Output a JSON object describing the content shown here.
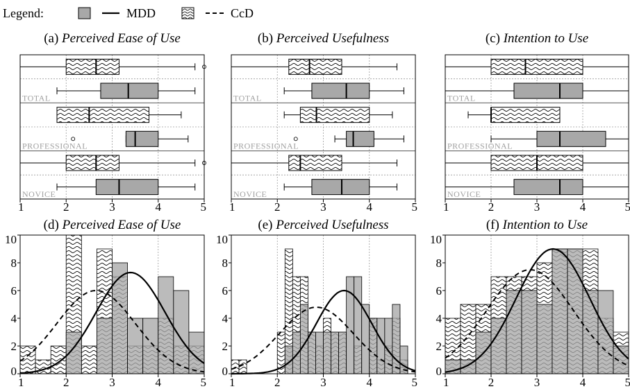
{
  "legend": {
    "label": "Legend:",
    "items": [
      {
        "name": "MDD",
        "style": "gray-box-solid-line",
        "fill": "#a8a8a8"
      },
      {
        "name": "CcD",
        "style": "wavy-box-dashed-line"
      }
    ]
  },
  "chart_data": [
    {
      "type": "box",
      "title_prefix": "(a)",
      "title": "Perceived Ease of Use",
      "xlim": [
        1,
        5
      ],
      "xticks": [
        1,
        2,
        3,
        4,
        5
      ],
      "groups": [
        {
          "label": "TOTAL",
          "CcD": {
            "whislo": 1.0,
            "q1": 2.0,
            "med": 2.65,
            "q3": 3.15,
            "whishi": 4.8,
            "fliers": [
              5.0
            ]
          },
          "MDD": {
            "whislo": 1.8,
            "q1": 2.75,
            "med": 3.35,
            "q3": 4.0,
            "whishi": 4.8,
            "fliers": []
          }
        },
        {
          "label": "PROFESSIONAL",
          "CcD": {
            "whislo": 1.8,
            "q1": 1.8,
            "med": 2.5,
            "q3": 3.8,
            "whishi": 4.5,
            "fliers": []
          },
          "MDD": {
            "whislo": 3.3,
            "q1": 3.3,
            "med": 3.5,
            "q3": 4.0,
            "whishi": 4.65,
            "fliers": [
              2.15
            ]
          }
        },
        {
          "label": "NOVICE",
          "CcD": {
            "whislo": 1.0,
            "q1": 2.0,
            "med": 2.65,
            "q3": 3.15,
            "whishi": 4.8,
            "fliers": [
              5.0
            ]
          },
          "MDD": {
            "whislo": 1.8,
            "q1": 2.65,
            "med": 3.15,
            "q3": 4.0,
            "whishi": 4.8,
            "fliers": []
          }
        }
      ]
    },
    {
      "type": "box",
      "title_prefix": "(b)",
      "title": "Perceived Usefulness",
      "xlim": [
        1,
        5
      ],
      "xticks": [
        1,
        2,
        3,
        4,
        5
      ],
      "groups": [
        {
          "label": "TOTAL",
          "CcD": {
            "whislo": 1.0,
            "q1": 2.25,
            "med": 2.7,
            "q3": 3.4,
            "whishi": 4.6,
            "fliers": []
          },
          "MDD": {
            "whislo": 2.15,
            "q1": 2.75,
            "med": 3.5,
            "q3": 4.0,
            "whishi": 4.75,
            "fliers": []
          }
        },
        {
          "label": "PROFESSIONAL",
          "CcD": {
            "whislo": 2.15,
            "q1": 2.5,
            "med": 2.85,
            "q3": 4.0,
            "whishi": 4.5,
            "fliers": []
          },
          "MDD": {
            "whislo": 3.25,
            "q1": 3.5,
            "med": 3.65,
            "q3": 4.1,
            "whishi": 4.75,
            "fliers": [
              2.4
            ]
          }
        },
        {
          "label": "NOVICE",
          "CcD": {
            "whislo": 1.0,
            "q1": 2.25,
            "med": 2.5,
            "q3": 3.4,
            "whishi": 4.6,
            "fliers": []
          },
          "MDD": {
            "whislo": 2.15,
            "q1": 2.75,
            "med": 3.4,
            "q3": 4.0,
            "whishi": 4.6,
            "fliers": []
          }
        }
      ]
    },
    {
      "type": "box",
      "title_prefix": "(c)",
      "title": "Intention to Use",
      "xlim": [
        1,
        5
      ],
      "xticks": [
        1,
        2,
        3,
        4,
        5
      ],
      "groups": [
        {
          "label": "TOTAL",
          "CcD": {
            "whislo": 1.0,
            "q1": 2.0,
            "med": 2.75,
            "q3": 4.0,
            "whishi": 5.0,
            "fliers": []
          },
          "MDD": {
            "whislo": 1.0,
            "q1": 2.5,
            "med": 3.5,
            "q3": 4.0,
            "whishi": 5.0,
            "fliers": []
          }
        },
        {
          "label": "PROFESSIONAL",
          "CcD": {
            "whislo": 1.5,
            "q1": 2.0,
            "med": 2.0,
            "q3": 3.5,
            "whishi": 3.5,
            "fliers": []
          },
          "MDD": {
            "whislo": 2.0,
            "q1": 3.0,
            "med": 3.5,
            "q3": 4.5,
            "whishi": 5.0,
            "fliers": []
          }
        },
        {
          "label": "NOVICE",
          "CcD": {
            "whislo": 1.0,
            "q1": 2.0,
            "med": 3.0,
            "q3": 4.0,
            "whishi": 5.0,
            "fliers": []
          },
          "MDD": {
            "whislo": 1.0,
            "q1": 2.5,
            "med": 3.5,
            "q3": 4.0,
            "whishi": 5.0,
            "fliers": []
          }
        }
      ]
    },
    {
      "type": "histogram",
      "title_prefix": "(d)",
      "title": "Perceived Ease of Use",
      "xlim": [
        1,
        5
      ],
      "ylim": [
        0,
        10
      ],
      "xticks": [
        1,
        2,
        3,
        4,
        5
      ],
      "yticks": [
        0,
        2,
        4,
        6,
        8,
        10
      ],
      "bin_width": 0.333,
      "bin_starts": [
        1.0,
        1.333,
        1.667,
        2.0,
        2.333,
        2.667,
        3.0,
        3.333,
        3.667,
        4.0,
        4.333,
        4.667
      ],
      "series": [
        {
          "name": "CcD",
          "values": [
            2,
            1,
            2,
            10,
            2,
            9,
            7,
            2,
            2,
            4,
            2,
            2
          ],
          "fit": {
            "mean": 2.65,
            "sd": 0.85,
            "peak": 6.0
          }
        },
        {
          "name": "MDD",
          "values": [
            0,
            0,
            0,
            3,
            0,
            4,
            8,
            4,
            4,
            7,
            6,
            3
          ],
          "fit": {
            "mean": 3.4,
            "sd": 0.75,
            "peak": 7.3
          }
        }
      ]
    },
    {
      "type": "histogram",
      "title_prefix": "(e)",
      "title": "Perceived Usefulness",
      "xlim": [
        1,
        5
      ],
      "ylim": [
        0,
        10
      ],
      "xticks": [
        1,
        2,
        3,
        4,
        5
      ],
      "yticks": [
        0,
        2,
        4,
        6,
        8,
        10
      ],
      "bin_width": 0.167,
      "bin_starts": [
        1.0,
        1.167,
        1.333,
        1.5,
        1.667,
        1.833,
        2.0,
        2.167,
        2.333,
        2.5,
        2.667,
        2.833,
        3.0,
        3.167,
        3.333,
        3.5,
        3.667,
        3.833,
        4.0,
        4.167,
        4.333,
        4.5,
        4.667,
        4.833
      ],
      "series": [
        {
          "name": "CcD",
          "values": [
            1,
            1,
            0,
            0,
            0,
            0,
            3,
            9,
            7,
            7,
            3,
            2,
            4,
            3,
            3,
            0,
            2,
            0,
            4,
            1,
            2,
            4,
            1,
            0
          ],
          "fit": {
            "mean": 2.85,
            "sd": 0.8,
            "peak": 4.8
          }
        },
        {
          "name": "MDD",
          "values": [
            0,
            0,
            0,
            0,
            0,
            0,
            0,
            2,
            3,
            5,
            3,
            3,
            3,
            3,
            3,
            7,
            7,
            5,
            4,
            4,
            4,
            5,
            2,
            0
          ],
          "fit": {
            "mean": 3.45,
            "sd": 0.6,
            "peak": 6.0
          }
        }
      ]
    },
    {
      "type": "histogram",
      "title_prefix": "(f)",
      "title": "Intention to Use",
      "xlim": [
        1,
        5
      ],
      "ylim": [
        0,
        10
      ],
      "xticks": [
        1,
        2,
        3,
        4,
        5
      ],
      "yticks": [
        0,
        2,
        4,
        6,
        8,
        10
      ],
      "bin_width": 0.333,
      "bin_starts": [
        1.0,
        1.333,
        1.667,
        2.0,
        2.333,
        2.667,
        3.0,
        3.333,
        3.667,
        4.0,
        4.333,
        4.667
      ],
      "series": [
        {
          "name": "CcD",
          "values": [
            4,
            5,
            5,
            7,
            7,
            7,
            8,
            9,
            9,
            9,
            4,
            3
          ],
          "fit": {
            "mean": 2.85,
            "sd": 0.95,
            "peak": 7.5
          }
        },
        {
          "name": "MDD",
          "values": [
            1,
            1,
            3,
            4,
            6,
            6,
            5,
            9,
            9,
            6,
            6,
            2
          ],
          "fit": {
            "mean": 3.35,
            "sd": 0.8,
            "peak": 9.0
          }
        }
      ]
    }
  ]
}
